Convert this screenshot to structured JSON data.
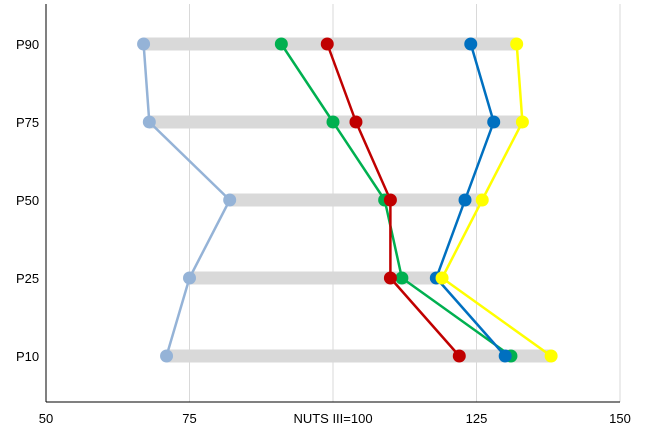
{
  "chart_data": {
    "type": "dot-range",
    "categories": [
      "P10",
      "P25",
      "P50",
      "P75",
      "P90"
    ],
    "xlim": [
      50,
      150
    ],
    "xticks": [
      {
        "value": 50,
        "label": "50"
      },
      {
        "value": 75,
        "label": "75"
      },
      {
        "value": 100,
        "label": "NUTS III=100"
      },
      {
        "value": 125,
        "label": "125"
      },
      {
        "value": 150,
        "label": "150"
      }
    ],
    "grid": true,
    "range_color": "#d9d9d9",
    "series": [
      {
        "color": "#95b3d7",
        "values": [
          71,
          75,
          82,
          68,
          67
        ]
      },
      {
        "color": "#00b050",
        "values": [
          131,
          112,
          109,
          100,
          91
        ]
      },
      {
        "color": "#c00000",
        "values": [
          122,
          110,
          110,
          104,
          99
        ]
      },
      {
        "color": "#0070c0",
        "values": [
          130,
          118,
          123,
          128,
          124
        ]
      },
      {
        "color": "#ffff00",
        "values": [
          138,
          119,
          126,
          133,
          132
        ]
      }
    ]
  }
}
